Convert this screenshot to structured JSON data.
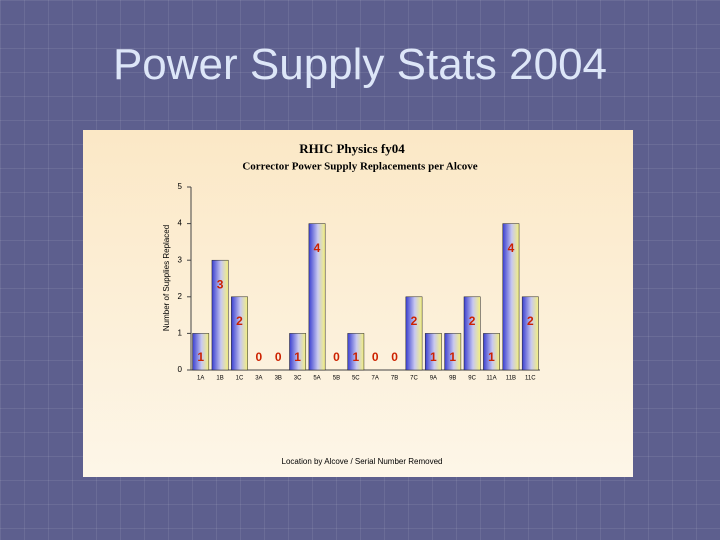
{
  "slide": {
    "title": "Power Supply Stats 2004"
  },
  "chart_data": {
    "type": "bar",
    "title": "RHIC Physics fy04",
    "subtitle": "Corrector Power Supply Replacements per Alcove",
    "y_label": "Number of Supplies Replaced",
    "x_label": "Location by Alcove / Serial Number Removed",
    "categories": [
      "1A",
      "1B",
      "1C",
      "3A",
      "3B",
      "3C",
      "5A",
      "5B",
      "5C",
      "7A",
      "7B",
      "7C",
      "9A",
      "9B",
      "9C",
      "11A",
      "11B",
      "11C"
    ],
    "values": [
      1,
      3,
      2,
      0,
      0,
      1,
      4,
      0,
      1,
      0,
      0,
      2,
      1,
      1,
      2,
      1,
      4,
      2
    ],
    "color": "#3a3fd0",
    "label_color": "#cc2200",
    "ylim": [
      0,
      5
    ],
    "yticks": [
      0,
      1,
      2,
      3,
      4,
      5
    ]
  }
}
